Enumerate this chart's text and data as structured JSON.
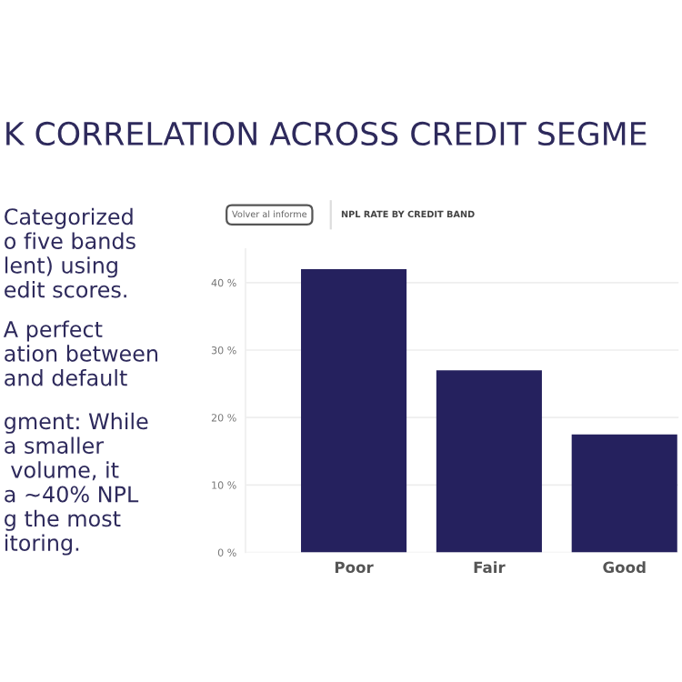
{
  "chart_data": {
    "type": "bar",
    "title": "K CORRELATION ACROSS CREDIT SEGME",
    "subtitle": "NPL RATE BY CREDIT BAND",
    "categories": [
      "Poor",
      "Fair",
      "Good"
    ],
    "values": [
      42,
      27,
      17.5
    ],
    "color": "#25215e",
    "ylim": [
      0,
      45
    ],
    "yticks": [
      {
        "value": 0,
        "label": "0 %"
      },
      {
        "value": 10,
        "label": "10 %"
      },
      {
        "value": 20,
        "label": "20 %"
      },
      {
        "value": 30,
        "label": "30 %"
      },
      {
        "value": 40,
        "label": "40 %"
      }
    ],
    "grid": "y",
    "annotations": [
      "Volver al informe",
      "Categorized\no five bands\nlent) using\nedit scores.",
      "A perfect\nation between\nand default",
      "gment: While\na smaller\n volume, it\na ~40% NPL\ng the most\nitoring."
    ]
  }
}
